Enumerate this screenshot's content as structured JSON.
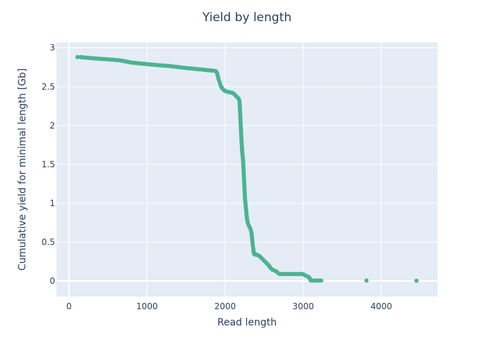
{
  "chart_data": {
    "type": "scatter",
    "title": "Yield by length",
    "xlabel": "Read length",
    "ylabel": "Cumulative yield for minimal length [Gb]",
    "xlim": [
      -160,
      4720
    ],
    "ylim": [
      -0.2,
      3.07
    ],
    "xticks": [
      0,
      1000,
      2000,
      3000,
      4000
    ],
    "xtick_labels": [
      "0",
      "1000",
      "2000",
      "3000",
      "4000"
    ],
    "yticks": [
      0,
      0.5,
      1,
      1.5,
      2,
      2.5,
      3
    ],
    "ytick_labels": [
      "0",
      "0.5",
      "1",
      "1.5",
      "2",
      "2.5",
      "3"
    ],
    "grid": true,
    "plot_bgcolor": "#e5ecf6",
    "marker_color": "#4cb391",
    "x": [
      110,
      150,
      200,
      250,
      300,
      350,
      400,
      450,
      500,
      550,
      600,
      650,
      700,
      750,
      800,
      850,
      900,
      950,
      1000,
      1050,
      1100,
      1150,
      1200,
      1250,
      1300,
      1350,
      1400,
      1450,
      1500,
      1550,
      1600,
      1650,
      1700,
      1750,
      1800,
      1850,
      1880,
      1895,
      1905,
      1915,
      1925,
      1935,
      1945,
      1955,
      1970,
      1990,
      2010,
      2030,
      2050,
      2070,
      2090,
      2110,
      2130,
      2150,
      2170,
      2180,
      2185,
      2190,
      2195,
      2200,
      2205,
      2210,
      2215,
      2220,
      2225,
      2230,
      2235,
      2240,
      2245,
      2250,
      2255,
      2260,
      2265,
      2270,
      2275,
      2280,
      2290,
      2300,
      2310,
      2320,
      2330,
      2340,
      2350,
      2355,
      2360,
      2362,
      2365,
      2368,
      2372,
      2376,
      2380,
      2390,
      2400,
      2420,
      2440,
      2460,
      2480,
      2500,
      2520,
      2540,
      2560,
      2580,
      2600,
      2620,
      2640,
      2660,
      2680,
      2700,
      2850,
      2970,
      2990,
      3010,
      3030,
      3050,
      3070,
      3080,
      3085,
      3090,
      3095,
      3100,
      3230,
      3810,
      4450
    ],
    "y": [
      2.88,
      2.88,
      2.875,
      2.87,
      2.866,
      2.862,
      2.858,
      2.855,
      2.851,
      2.847,
      2.843,
      2.839,
      2.83,
      2.82,
      2.81,
      2.805,
      2.8,
      2.795,
      2.79,
      2.785,
      2.78,
      2.776,
      2.772,
      2.768,
      2.764,
      2.758,
      2.752,
      2.745,
      2.74,
      2.735,
      2.73,
      2.725,
      2.72,
      2.715,
      2.71,
      2.705,
      2.7,
      2.68,
      2.64,
      2.6,
      2.57,
      2.54,
      2.51,
      2.49,
      2.47,
      2.45,
      2.44,
      2.435,
      2.43,
      2.425,
      2.42,
      2.41,
      2.39,
      2.37,
      2.35,
      2.33,
      2.3,
      2.2,
      2.1,
      2.0,
      1.9,
      1.8,
      1.72,
      1.65,
      1.6,
      1.55,
      1.45,
      1.35,
      1.25,
      1.15,
      1.05,
      1.0,
      0.95,
      0.9,
      0.85,
      0.8,
      0.75,
      0.72,
      0.7,
      0.68,
      0.65,
      0.6,
      0.5,
      0.45,
      0.42,
      0.4,
      0.38,
      0.36,
      0.35,
      0.35,
      0.34,
      0.34,
      0.34,
      0.33,
      0.32,
      0.3,
      0.28,
      0.26,
      0.24,
      0.22,
      0.2,
      0.17,
      0.15,
      0.14,
      0.13,
      0.12,
      0.1,
      0.09,
      0.09,
      0.09,
      0.09,
      0.08,
      0.07,
      0.06,
      0.05,
      0.04,
      0.03,
      0.02,
      0.01,
      0.005,
      0.005,
      0.005,
      0.003
    ]
  }
}
